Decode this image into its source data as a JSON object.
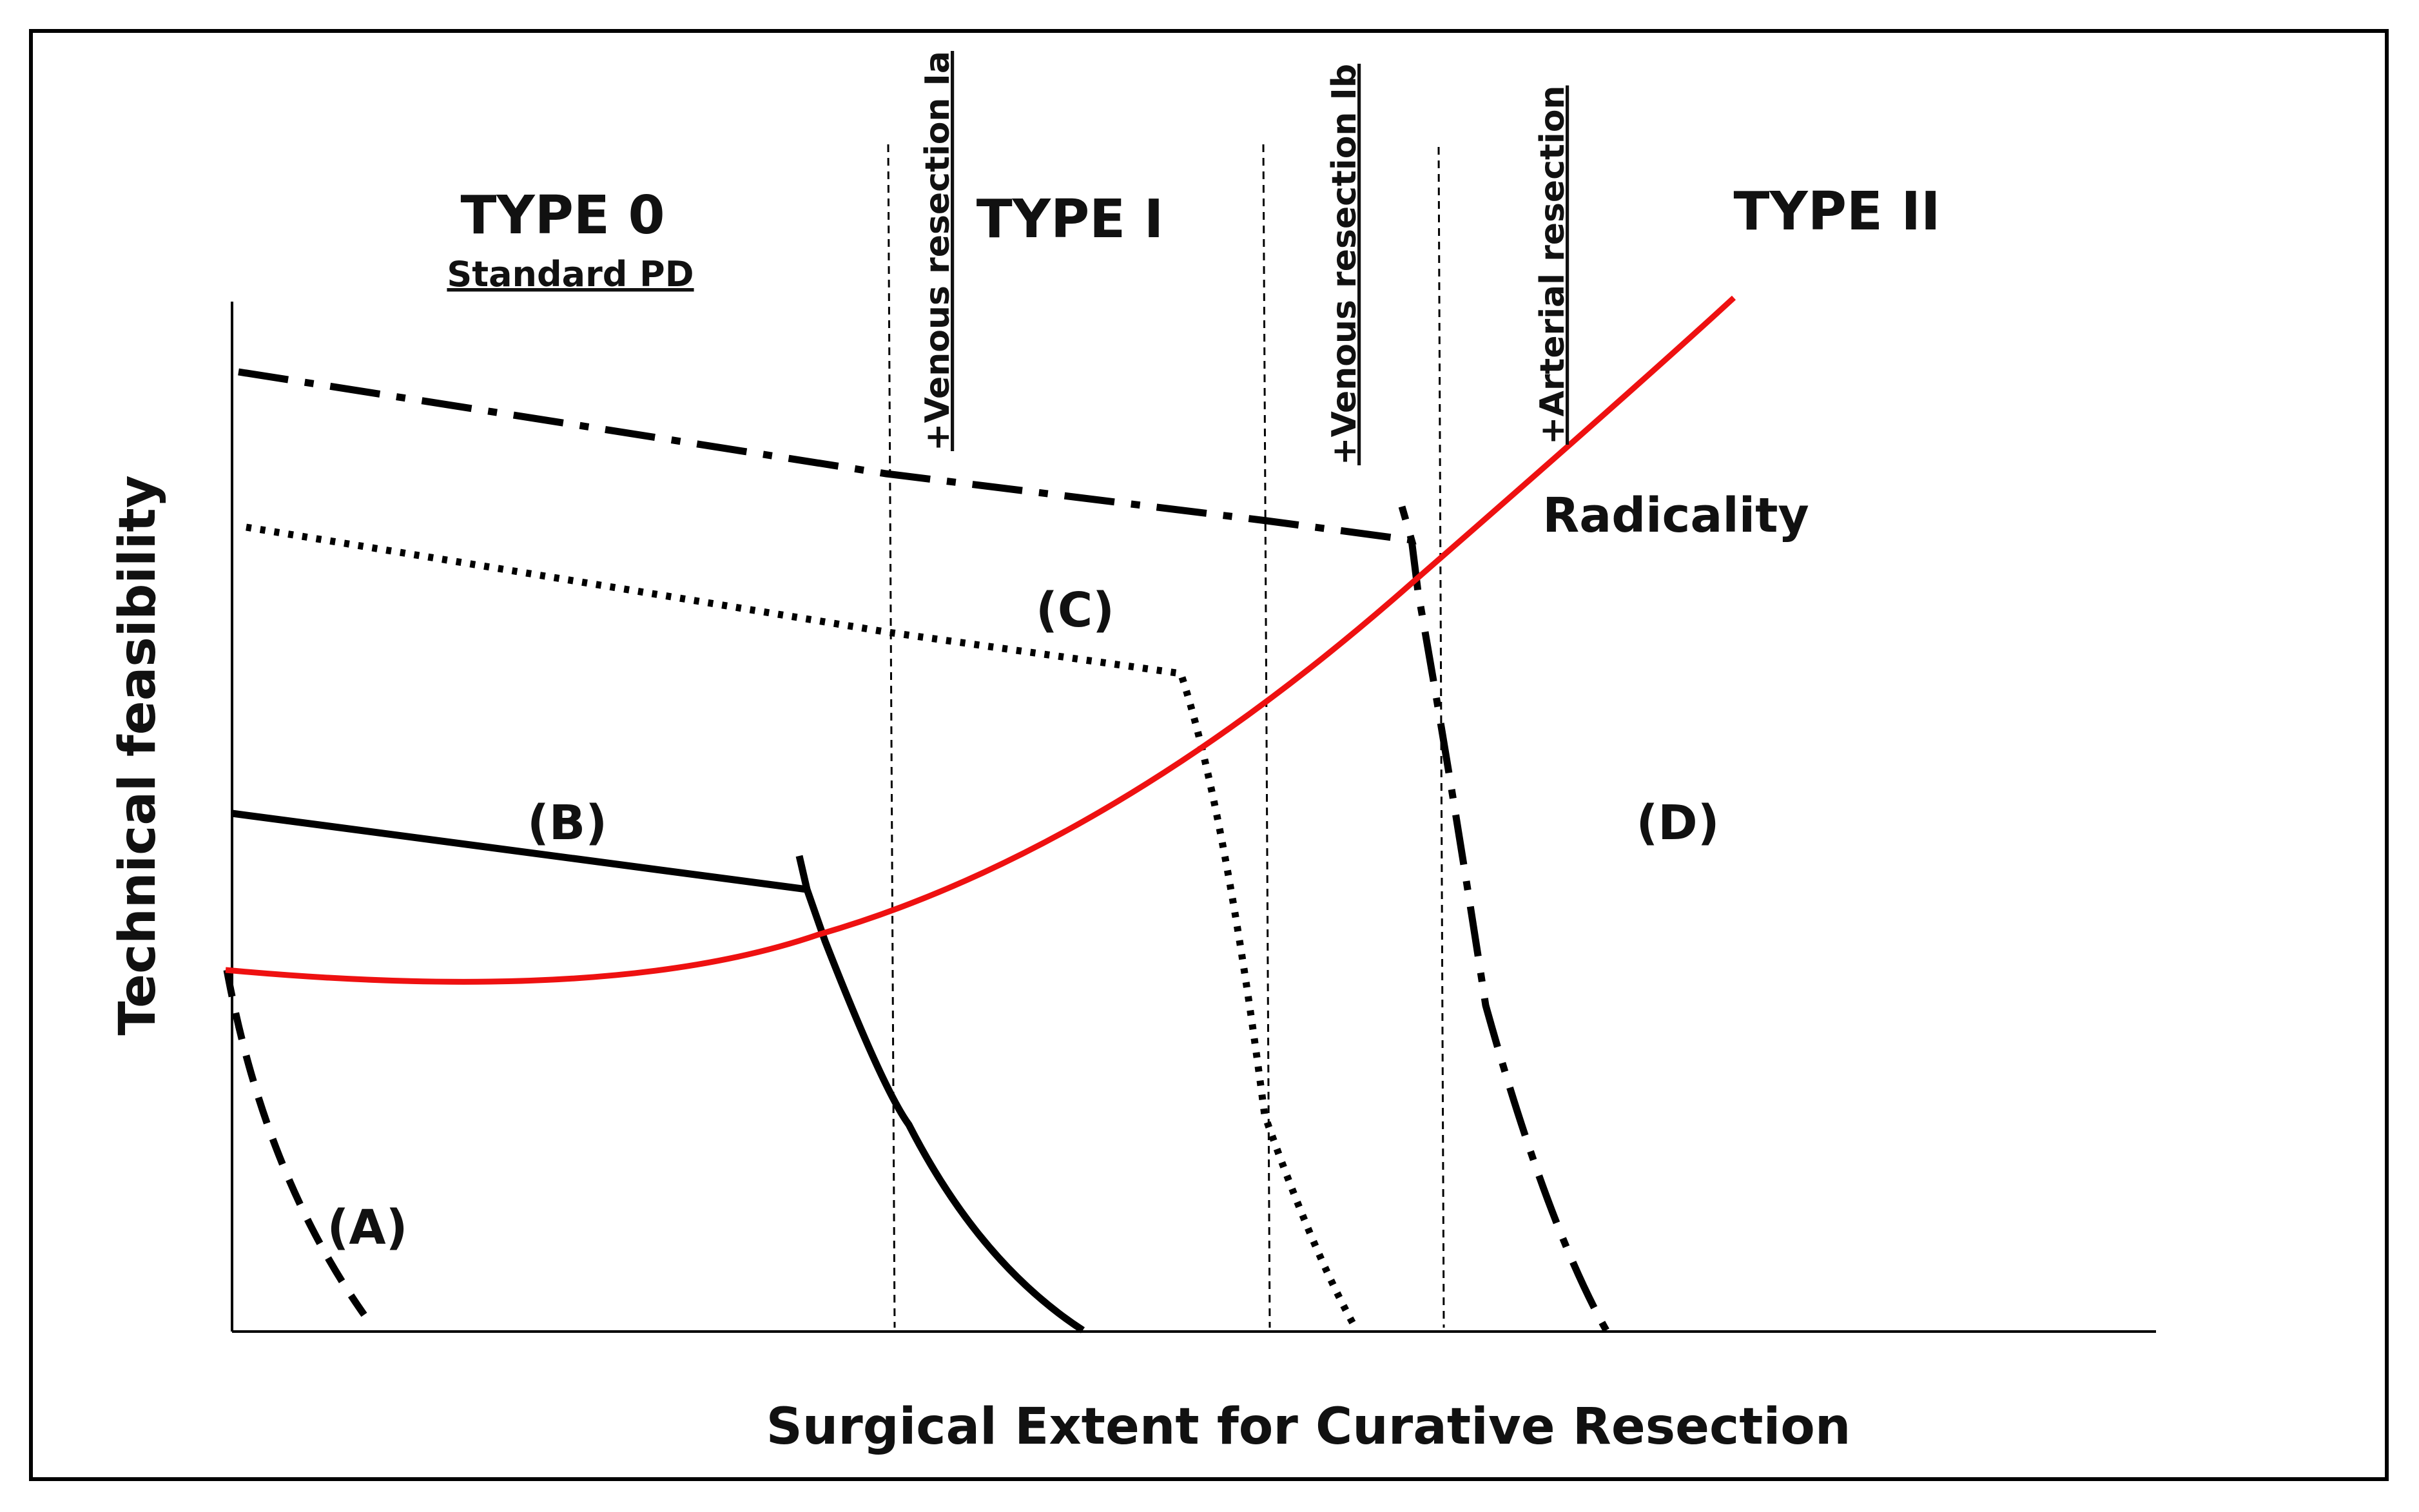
{
  "diagram": {
    "x_axis_title": "Surgical Extent for Curative Resection",
    "y_axis_title": "Technical feasibility",
    "types": [
      {
        "id": "type0",
        "label": "TYPE 0",
        "sublabel": "Standard PD"
      },
      {
        "id": "type1",
        "label": "TYPE I"
      },
      {
        "id": "type2",
        "label": "TYPE II"
      }
    ],
    "boundaries": [
      {
        "id": "venous-ia",
        "label": "+Venous resection Ia"
      },
      {
        "id": "venous-ib",
        "label": "+Venous resection Ib"
      },
      {
        "id": "arterial",
        "label": "+Arterial  resection"
      }
    ],
    "curves": [
      {
        "id": "A",
        "label": "(A)",
        "style": "dashed"
      },
      {
        "id": "B",
        "label": "(B)",
        "style": "solid"
      },
      {
        "id": "C",
        "label": "(C)",
        "style": "dotted"
      },
      {
        "id": "D",
        "label": "(D)",
        "style": "dash-dot"
      },
      {
        "id": "radicality",
        "label": "Radicality",
        "style": "solid",
        "color": "#ee1111"
      }
    ],
    "colors": {
      "frame": "#000000",
      "axis": "#000000",
      "radicality": "#ee1111"
    }
  }
}
